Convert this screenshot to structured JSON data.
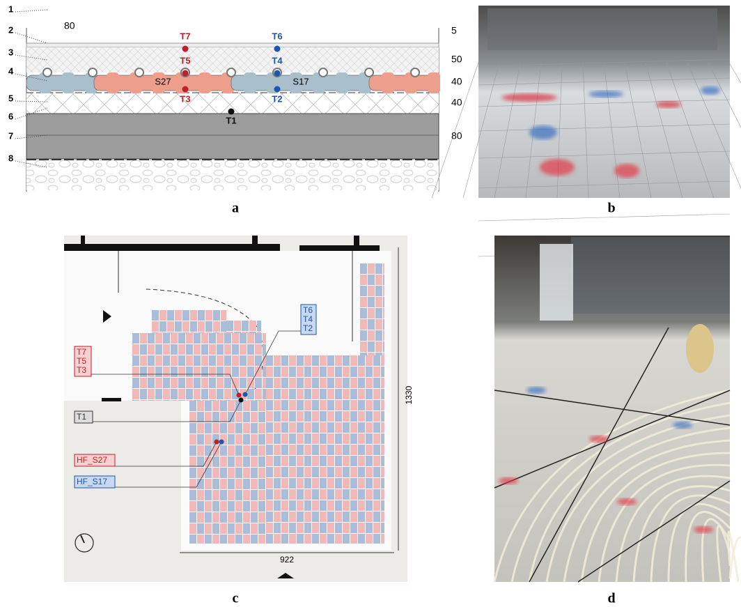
{
  "panel_a": {
    "label": "a",
    "layer_numbers": [
      "1",
      "2",
      "3",
      "4",
      "5",
      "6",
      "7",
      "8"
    ],
    "top_dimension": "80",
    "right_dimensions": [
      "5",
      "50",
      "40",
      "40",
      "80"
    ],
    "sensors": [
      "T7",
      "T5",
      "T3",
      "T6",
      "T4",
      "T2",
      "T1"
    ],
    "modules": [
      "S27",
      "S17"
    ]
  },
  "panel_b": {
    "label": "b"
  },
  "panel_c": {
    "label": "c",
    "callouts": [
      {
        "lines": [
          "T6",
          "T4",
          "T2"
        ]
      },
      {
        "lines": [
          "T7",
          "T5",
          "T3"
        ]
      },
      {
        "lines": [
          "T1"
        ]
      },
      {
        "lines": [
          "HF_S27"
        ]
      },
      {
        "lines": [
          "HF_S17"
        ]
      }
    ],
    "dimensions": [
      "1330",
      "922"
    ]
  },
  "panel_d": {
    "label": "d"
  }
}
